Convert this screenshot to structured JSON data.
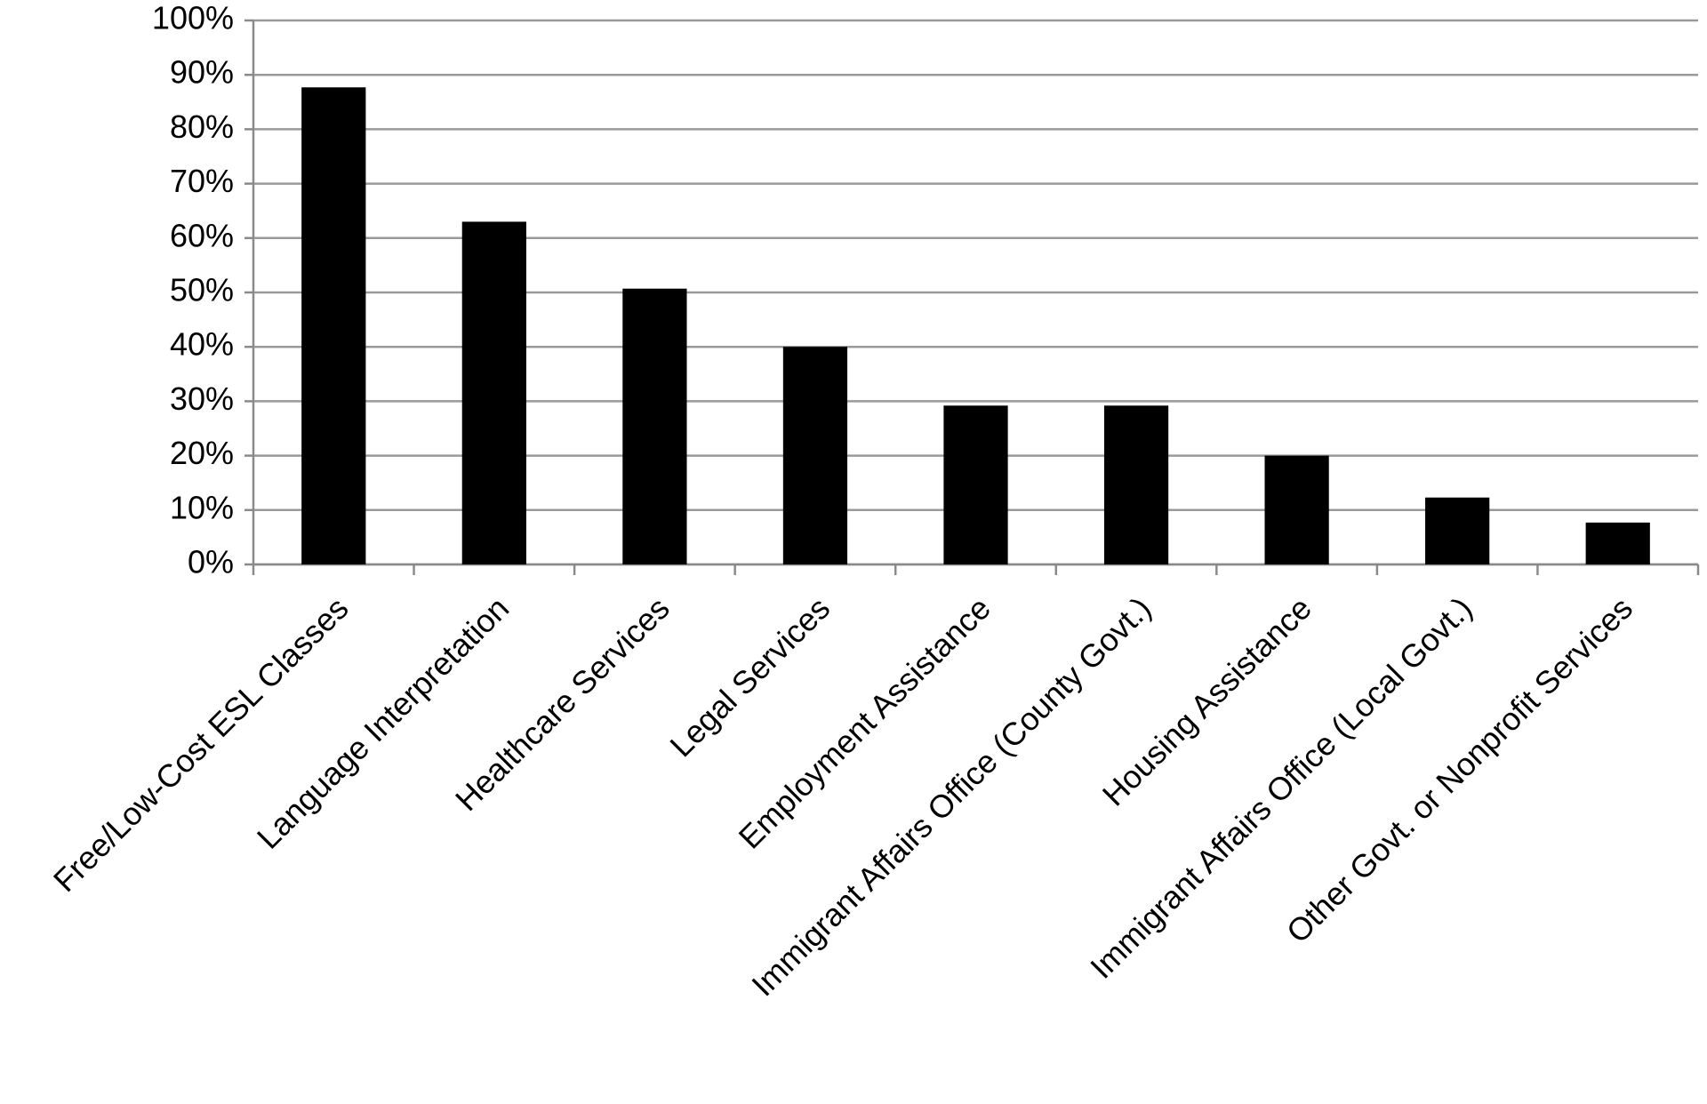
{
  "chart_data": {
    "type": "bar",
    "categories": [
      "Free/Low-Cost ESL Classes",
      "Language Interpretation",
      "Healthcare Services",
      "Legal Services",
      "Employment Assistance",
      "Immigrant Affairs Office (County Govt.)",
      "Housing Assistance",
      "Immigrant Affairs Office (Local Govt.)",
      "Other Govt. or Nonprofit Services"
    ],
    "values": [
      87.7,
      63,
      50.7,
      40,
      29.2,
      29.2,
      20,
      12.3,
      7.7
    ],
    "color": "#000000",
    "ylim": [
      0,
      100
    ],
    "yticks": [
      {
        "value": 0,
        "label": "0%"
      },
      {
        "value": 10,
        "label": "10%"
      },
      {
        "value": 20,
        "label": "20%"
      },
      {
        "value": 30,
        "label": "30%"
      },
      {
        "value": 40,
        "label": "40%"
      },
      {
        "value": 50,
        "label": "50%"
      },
      {
        "value": 60,
        "label": "60%"
      },
      {
        "value": 70,
        "label": "70%"
      },
      {
        "value": 80,
        "label": "80%"
      },
      {
        "value": 90,
        "label": "90%"
      },
      {
        "value": 100,
        "label": "100%"
      }
    ],
    "grid": true
  }
}
